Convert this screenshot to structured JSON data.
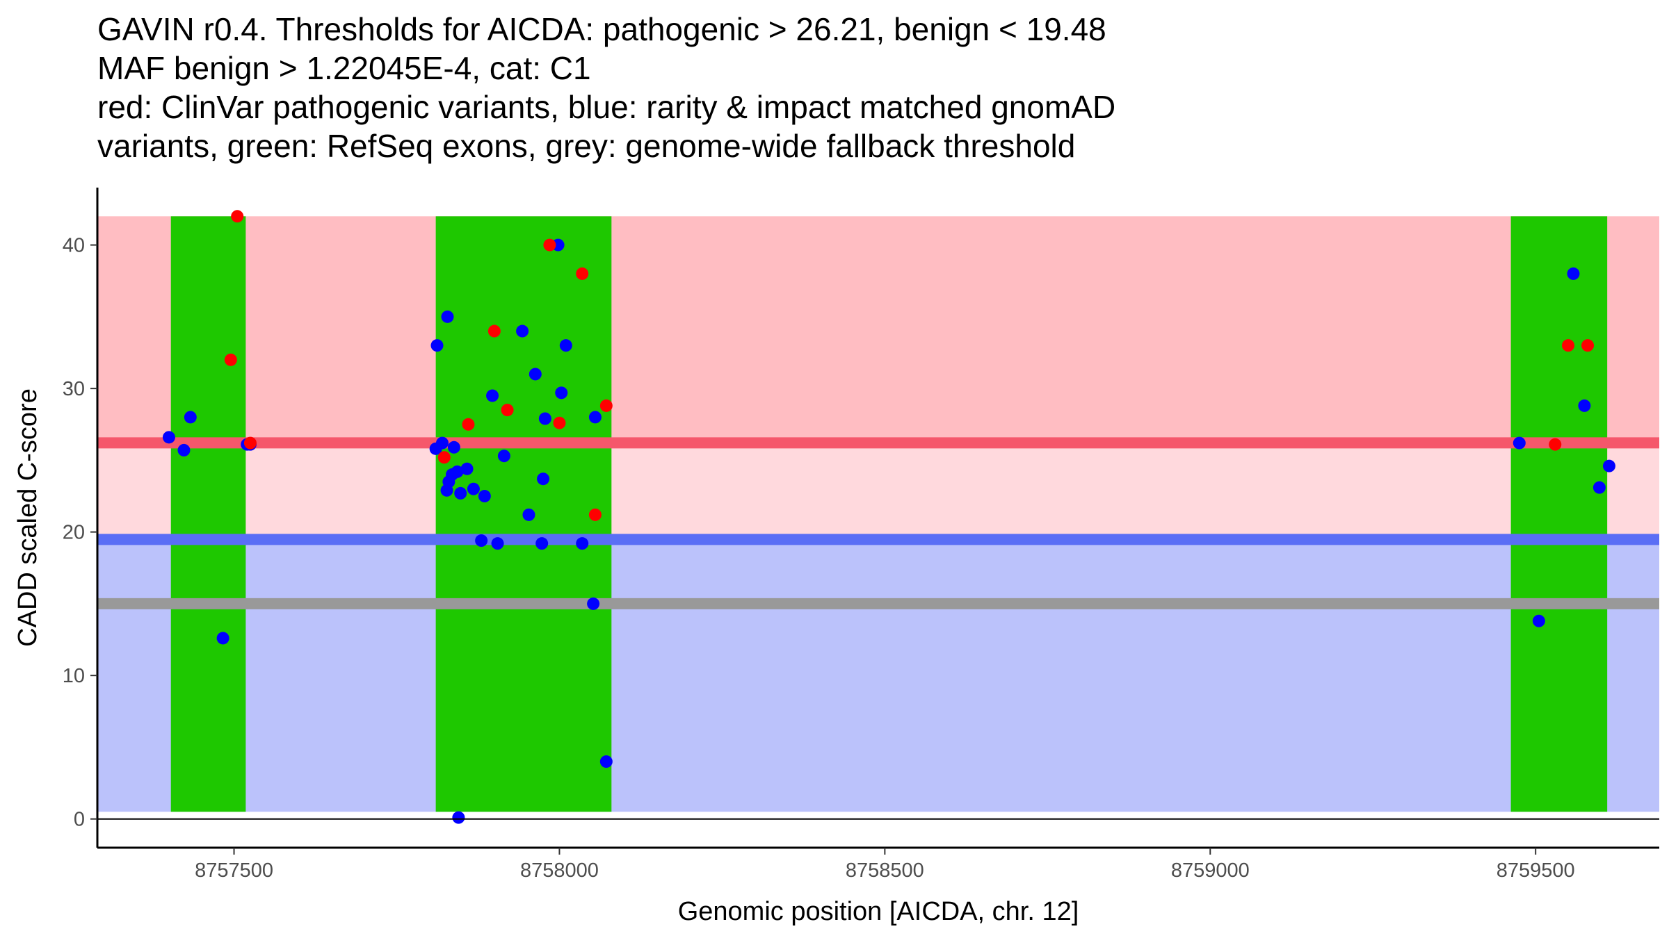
{
  "chart_data": {
    "type": "scatter",
    "title_lines": [
      "GAVIN r0.4. Thresholds for AICDA: pathogenic > 26.21, benign < 19.48",
      "MAF benign > 1.22045E-4, cat: C1",
      "red: ClinVar pathogenic variants, blue: rarity & impact matched gnomAD",
      "variants, green: RefSeq exons, grey: genome-wide fallback threshold"
    ],
    "xlabel": "Genomic position [AICDA, chr. 12]",
    "ylabel": "CADD scaled C-score",
    "xlim": [
      8757290,
      8759690
    ],
    "ylim": [
      -2,
      44
    ],
    "xticks": [
      8757500,
      8758000,
      8758500,
      8759000,
      8759500
    ],
    "yticks": [
      0,
      10,
      20,
      30,
      40
    ],
    "thresholds": {
      "pathogenic": 26.21,
      "benign": 19.48,
      "fallback": 15
    },
    "bands": {
      "pathogenic_region": [
        26.21,
        42
      ],
      "intermediate_region": [
        19.48,
        26.21
      ],
      "benign_region": [
        0.5,
        19.48
      ]
    },
    "colors": {
      "pathogenic_band": "#ffbdc2",
      "intermediate_band": "#ffd9dd",
      "benign_band": "#bbc2fb",
      "pathogenic_line": "#f5576b",
      "benign_line": "#5a6ef5",
      "fallback_line": "#999999",
      "exon": "#1ec800",
      "clinvar": "#ff0000",
      "gnomad": "#0000ff"
    },
    "exons": [
      {
        "start": 8757403,
        "end": 8757518
      },
      {
        "start": 8757810,
        "end": 8758080
      },
      {
        "start": 8759462,
        "end": 8759610
      }
    ],
    "series": [
      {
        "name": "ClinVar pathogenic",
        "points": [
          [
            8757505,
            42
          ],
          [
            8757495,
            32
          ],
          [
            8757525,
            26.2
          ],
          [
            8757823,
            25.2
          ],
          [
            8757860,
            27.5
          ],
          [
            8757900,
            34
          ],
          [
            8757920,
            28.5
          ],
          [
            8757985,
            40
          ],
          [
            8758000,
            27.6
          ],
          [
            8758035,
            38
          ],
          [
            8758055,
            21.2
          ],
          [
            8758072,
            28.8
          ],
          [
            8759530,
            26.1
          ],
          [
            8759550,
            33
          ],
          [
            8759580,
            33
          ]
        ]
      },
      {
        "name": "gnomAD matched",
        "points": [
          [
            8757400,
            26.6
          ],
          [
            8757423,
            25.7
          ],
          [
            8757433,
            28
          ],
          [
            8757483,
            12.6
          ],
          [
            8757520,
            26.1
          ],
          [
            8757525,
            26.1
          ],
          [
            8757810,
            25.8
          ],
          [
            8757812,
            33
          ],
          [
            8757820,
            26.2
          ],
          [
            8757828,
            35
          ],
          [
            8757827,
            22.9
          ],
          [
            8757830,
            23.5
          ],
          [
            8757835,
            24
          ],
          [
            8757838,
            25.9
          ],
          [
            8757843,
            24.2
          ],
          [
            8757845,
            0.1
          ],
          [
            8757848,
            22.7
          ],
          [
            8757858,
            24.4
          ],
          [
            8757868,
            23
          ],
          [
            8757880,
            19.4
          ],
          [
            8757885,
            22.5
          ],
          [
            8757897,
            29.5
          ],
          [
            8757905,
            19.2
          ],
          [
            8757915,
            25.3
          ],
          [
            8757943,
            34
          ],
          [
            8757953,
            21.2
          ],
          [
            8757963,
            31
          ],
          [
            8757973,
            19.2
          ],
          [
            8757975,
            23.7
          ],
          [
            8757978,
            27.9
          ],
          [
            8757998,
            40
          ],
          [
            8758003,
            29.7
          ],
          [
            8758010,
            33
          ],
          [
            8758035,
            19.2
          ],
          [
            8758052,
            15
          ],
          [
            8758055,
            28
          ],
          [
            8758072,
            4
          ],
          [
            8759475,
            26.2
          ],
          [
            8759505,
            13.8
          ],
          [
            8759558,
            38
          ],
          [
            8759575,
            28.8
          ],
          [
            8759598,
            23.1
          ],
          [
            8759613,
            24.6
          ]
        ]
      }
    ]
  }
}
